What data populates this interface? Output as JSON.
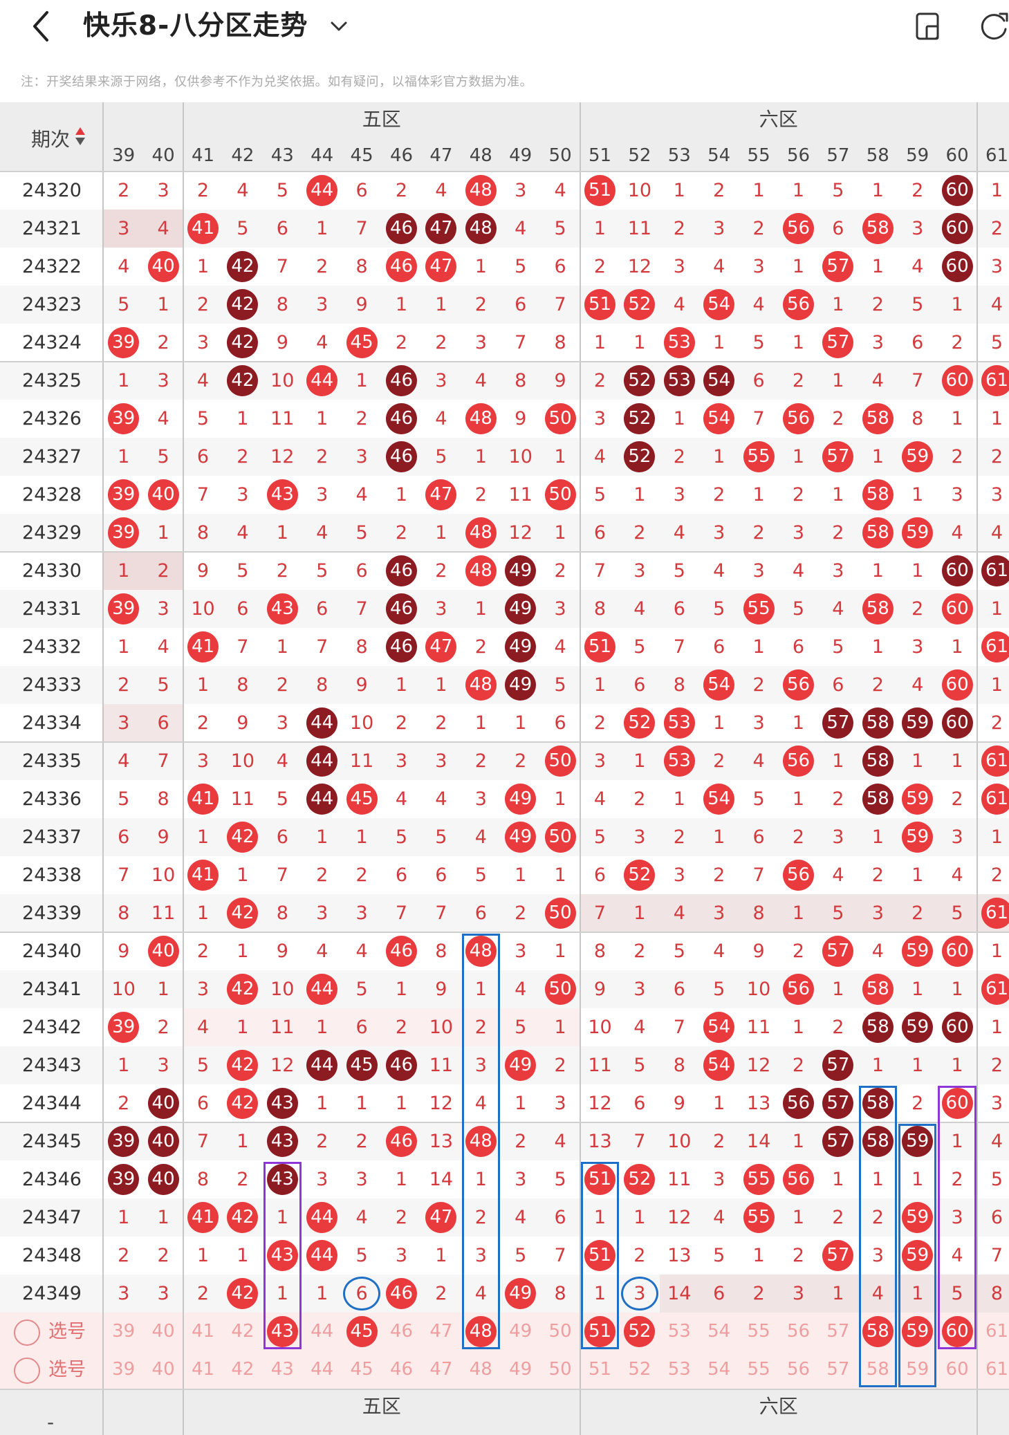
{
  "header": {
    "title": "快乐8-八分区走势",
    "back_icon": "chevron-left-icon",
    "dropdown_icon": "chevron-down-icon",
    "icon1": "phone-layout-icon",
    "icon2": "refresh-icon"
  },
  "notice": "注：开奖结果来源于网络，仅供参考不作为兑奖依据。如有疑问，以福体彩官方数据为准。",
  "table": {
    "label_header": "期次",
    "zones": [
      {
        "label": "五区",
        "from": 41,
        "to": 50
      },
      {
        "label": "六区",
        "from": 51,
        "to": 60
      }
    ],
    "columns": [
      39,
      40,
      41,
      42,
      43,
      44,
      45,
      46,
      47,
      48,
      49,
      50,
      51,
      52,
      53,
      54,
      55,
      56,
      57,
      58,
      59,
      60,
      61
    ],
    "rows": [
      {
        "period": "24320",
        "cells": [
          "2",
          "3",
          "2",
          "4",
          "5",
          "44",
          "6",
          "2",
          "4",
          "48",
          "3",
          "4",
          "51",
          "10",
          "1",
          "2",
          "1",
          "1",
          "5",
          "1",
          "2",
          "60",
          "1"
        ],
        "dark": [
          60
        ]
      },
      {
        "period": "24321",
        "cells": [
          "3",
          "4",
          "41",
          "5",
          "6",
          "1",
          "7",
          "46",
          "47",
          "48",
          "4",
          "5",
          "1",
          "11",
          "2",
          "3",
          "2",
          "56",
          "6",
          "58",
          "3",
          "60",
          "2"
        ],
        "dark": [
          46,
          47,
          48,
          60
        ]
      },
      {
        "period": "24322",
        "cells": [
          "4",
          "40",
          "1",
          "42",
          "7",
          "2",
          "8",
          "46",
          "47",
          "1",
          "5",
          "6",
          "2",
          "12",
          "3",
          "4",
          "3",
          "1",
          "57",
          "1",
          "4",
          "60",
          "3"
        ],
        "dark": [
          42,
          60
        ]
      },
      {
        "period": "24323",
        "cells": [
          "5",
          "1",
          "2",
          "42",
          "8",
          "3",
          "9",
          "1",
          "1",
          "2",
          "6",
          "7",
          "51",
          "52",
          "4",
          "54",
          "4",
          "56",
          "1",
          "2",
          "5",
          "1",
          "4"
        ],
        "dark": [
          42
        ]
      },
      {
        "period": "24324",
        "cells": [
          "39",
          "2",
          "3",
          "42",
          "9",
          "4",
          "45",
          "2",
          "2",
          "3",
          "7",
          "8",
          "1",
          "1",
          "53",
          "1",
          "5",
          "1",
          "57",
          "3",
          "6",
          "2",
          "5"
        ],
        "dark": [
          42
        ]
      },
      {
        "period": "24325",
        "cells": [
          "1",
          "3",
          "4",
          "42",
          "10",
          "44",
          "1",
          "46",
          "3",
          "4",
          "8",
          "9",
          "2",
          "52",
          "53",
          "54",
          "6",
          "2",
          "1",
          "4",
          "7",
          "60",
          "61"
        ],
        "dark": [
          42,
          46,
          52,
          53,
          54
        ]
      },
      {
        "period": "24326",
        "cells": [
          "39",
          "4",
          "5",
          "1",
          "11",
          "1",
          "2",
          "46",
          "4",
          "48",
          "9",
          "50",
          "3",
          "52",
          "1",
          "54",
          "7",
          "56",
          "2",
          "58",
          "8",
          "1",
          "1"
        ],
        "dark": [
          46,
          52
        ]
      },
      {
        "period": "24327",
        "cells": [
          "1",
          "5",
          "6",
          "2",
          "12",
          "2",
          "3",
          "46",
          "5",
          "1",
          "10",
          "1",
          "4",
          "52",
          "2",
          "1",
          "55",
          "1",
          "57",
          "1",
          "59",
          "2",
          "2"
        ],
        "dark": [
          46,
          52
        ]
      },
      {
        "period": "24328",
        "cells": [
          "39",
          "40",
          "7",
          "3",
          "43",
          "3",
          "4",
          "1",
          "47",
          "2",
          "11",
          "50",
          "5",
          "1",
          "3",
          "2",
          "1",
          "2",
          "1",
          "58",
          "1",
          "3",
          "3"
        ],
        "dark": []
      },
      {
        "period": "24329",
        "cells": [
          "39",
          "1",
          "8",
          "4",
          "1",
          "4",
          "5",
          "2",
          "1",
          "48",
          "12",
          "1",
          "6",
          "2",
          "4",
          "3",
          "2",
          "3",
          "2",
          "58",
          "59",
          "4",
          "4"
        ],
        "dark": []
      },
      {
        "period": "24330",
        "cells": [
          "1",
          "2",
          "9",
          "5",
          "2",
          "5",
          "6",
          "46",
          "2",
          "48",
          "49",
          "2",
          "7",
          "3",
          "5",
          "4",
          "3",
          "4",
          "3",
          "1",
          "1",
          "60",
          "61"
        ],
        "dark": [
          46,
          49,
          60,
          61
        ]
      },
      {
        "period": "24331",
        "cells": [
          "39",
          "3",
          "10",
          "6",
          "43",
          "6",
          "7",
          "46",
          "3",
          "1",
          "49",
          "3",
          "8",
          "4",
          "6",
          "5",
          "55",
          "5",
          "4",
          "58",
          "2",
          "60",
          "1"
        ],
        "dark": [
          46,
          49
        ]
      },
      {
        "period": "24332",
        "cells": [
          "1",
          "4",
          "41",
          "7",
          "1",
          "7",
          "8",
          "46",
          "47",
          "2",
          "49",
          "4",
          "51",
          "5",
          "7",
          "6",
          "1",
          "6",
          "5",
          "1",
          "3",
          "1",
          "61"
        ],
        "dark": [
          46,
          49
        ]
      },
      {
        "period": "24333",
        "cells": [
          "2",
          "5",
          "1",
          "8",
          "2",
          "8",
          "9",
          "1",
          "1",
          "48",
          "49",
          "5",
          "1",
          "6",
          "8",
          "54",
          "2",
          "56",
          "6",
          "2",
          "4",
          "60",
          "1"
        ],
        "dark": [
          49
        ]
      },
      {
        "period": "24334",
        "cells": [
          "3",
          "6",
          "2",
          "9",
          "3",
          "44",
          "10",
          "2",
          "2",
          "1",
          "1",
          "6",
          "2",
          "52",
          "53",
          "1",
          "3",
          "1",
          "57",
          "58",
          "59",
          "60",
          "2"
        ],
        "dark": [
          44,
          57,
          58,
          59,
          60
        ]
      },
      {
        "period": "24335",
        "cells": [
          "4",
          "7",
          "3",
          "10",
          "4",
          "44",
          "11",
          "3",
          "3",
          "2",
          "2",
          "50",
          "3",
          "1",
          "53",
          "2",
          "4",
          "56",
          "1",
          "58",
          "1",
          "1",
          "61"
        ],
        "dark": [
          44,
          58
        ]
      },
      {
        "period": "24336",
        "cells": [
          "5",
          "8",
          "41",
          "11",
          "5",
          "44",
          "45",
          "4",
          "4",
          "3",
          "49",
          "1",
          "4",
          "2",
          "1",
          "54",
          "5",
          "1",
          "2",
          "58",
          "59",
          "2",
          "61"
        ],
        "dark": [
          44,
          58
        ]
      },
      {
        "period": "24337",
        "cells": [
          "6",
          "9",
          "1",
          "42",
          "6",
          "1",
          "1",
          "5",
          "5",
          "4",
          "49",
          "50",
          "5",
          "3",
          "2",
          "1",
          "6",
          "2",
          "3",
          "1",
          "59",
          "3",
          "1"
        ],
        "dark": []
      },
      {
        "period": "24338",
        "cells": [
          "7",
          "10",
          "41",
          "1",
          "7",
          "2",
          "2",
          "6",
          "6",
          "5",
          "1",
          "1",
          "6",
          "52",
          "3",
          "2",
          "7",
          "56",
          "4",
          "2",
          "1",
          "4",
          "2"
        ],
        "dark": []
      },
      {
        "period": "24339",
        "cells": [
          "8",
          "11",
          "1",
          "42",
          "8",
          "3",
          "3",
          "7",
          "7",
          "6",
          "2",
          "50",
          "7",
          "1",
          "4",
          "3",
          "8",
          "1",
          "5",
          "3",
          "2",
          "5",
          "61"
        ],
        "dark": []
      },
      {
        "period": "24340",
        "cells": [
          "9",
          "40",
          "2",
          "1",
          "9",
          "4",
          "4",
          "46",
          "8",
          "48",
          "3",
          "1",
          "8",
          "2",
          "5",
          "4",
          "9",
          "2",
          "57",
          "4",
          "59",
          "60",
          "1"
        ],
        "dark": []
      },
      {
        "period": "24341",
        "cells": [
          "10",
          "1",
          "3",
          "42",
          "10",
          "44",
          "5",
          "1",
          "9",
          "1",
          "4",
          "50",
          "9",
          "3",
          "6",
          "5",
          "10",
          "56",
          "1",
          "58",
          "1",
          "1",
          "61"
        ],
        "dark": []
      },
      {
        "period": "24342",
        "cells": [
          "39",
          "2",
          "4",
          "1",
          "11",
          "1",
          "6",
          "2",
          "10",
          "2",
          "5",
          "1",
          "10",
          "4",
          "7",
          "54",
          "11",
          "1",
          "2",
          "58",
          "59",
          "60",
          "1"
        ],
        "dark": [
          58,
          59,
          60
        ]
      },
      {
        "period": "24343",
        "cells": [
          "1",
          "3",
          "5",
          "42",
          "12",
          "44",
          "45",
          "46",
          "11",
          "3",
          "49",
          "2",
          "11",
          "5",
          "8",
          "54",
          "12",
          "2",
          "57",
          "1",
          "1",
          "1",
          "2"
        ],
        "dark": [
          44,
          45,
          46,
          57
        ]
      },
      {
        "period": "24344",
        "cells": [
          "2",
          "40",
          "6",
          "42",
          "43",
          "1",
          "1",
          "1",
          "12",
          "4",
          "1",
          "3",
          "12",
          "6",
          "9",
          "1",
          "13",
          "56",
          "57",
          "58",
          "2",
          "60",
          "3"
        ],
        "dark": [
          40,
          43,
          56,
          57,
          58
        ]
      },
      {
        "period": "24345",
        "cells": [
          "39",
          "40",
          "7",
          "1",
          "43",
          "2",
          "2",
          "46",
          "13",
          "48",
          "2",
          "4",
          "13",
          "7",
          "10",
          "2",
          "14",
          "1",
          "57",
          "58",
          "59",
          "1",
          "4"
        ],
        "dark": [
          39,
          40,
          43,
          57,
          58,
          59
        ]
      },
      {
        "period": "24346",
        "cells": [
          "39",
          "40",
          "8",
          "2",
          "43",
          "3",
          "3",
          "1",
          "14",
          "1",
          "3",
          "5",
          "51",
          "52",
          "11",
          "3",
          "55",
          "56",
          "1",
          "1",
          "1",
          "2",
          "5"
        ],
        "dark": [
          39,
          40,
          43
        ]
      },
      {
        "period": "24347",
        "cells": [
          "1",
          "1",
          "41",
          "42",
          "1",
          "44",
          "4",
          "2",
          "47",
          "2",
          "4",
          "6",
          "1",
          "1",
          "12",
          "4",
          "55",
          "1",
          "2",
          "2",
          "59",
          "3",
          "6"
        ],
        "dark": []
      },
      {
        "period": "24348",
        "cells": [
          "2",
          "2",
          "1",
          "1",
          "43",
          "44",
          "5",
          "3",
          "1",
          "3",
          "5",
          "7",
          "51",
          "2",
          "13",
          "5",
          "1",
          "2",
          "57",
          "3",
          "59",
          "4",
          "7"
        ],
        "dark": []
      },
      {
        "period": "24349",
        "cells": [
          "3",
          "3",
          "2",
          "42",
          "1",
          "1",
          "6",
          "46",
          "2",
          "4",
          "49",
          "8",
          "1",
          "3",
          "14",
          "6",
          "2",
          "3",
          "1",
          "4",
          "1",
          "5",
          "8"
        ],
        "dark": []
      }
    ],
    "select_label": "选号",
    "select_row1_picks": [
      45,
      48,
      51,
      52,
      58,
      59,
      60
    ],
    "select_row1_pink_ball": [
      43
    ]
  },
  "bottom": {
    "zones": [
      "五区",
      "六区"
    ],
    "dash": "-"
  }
}
